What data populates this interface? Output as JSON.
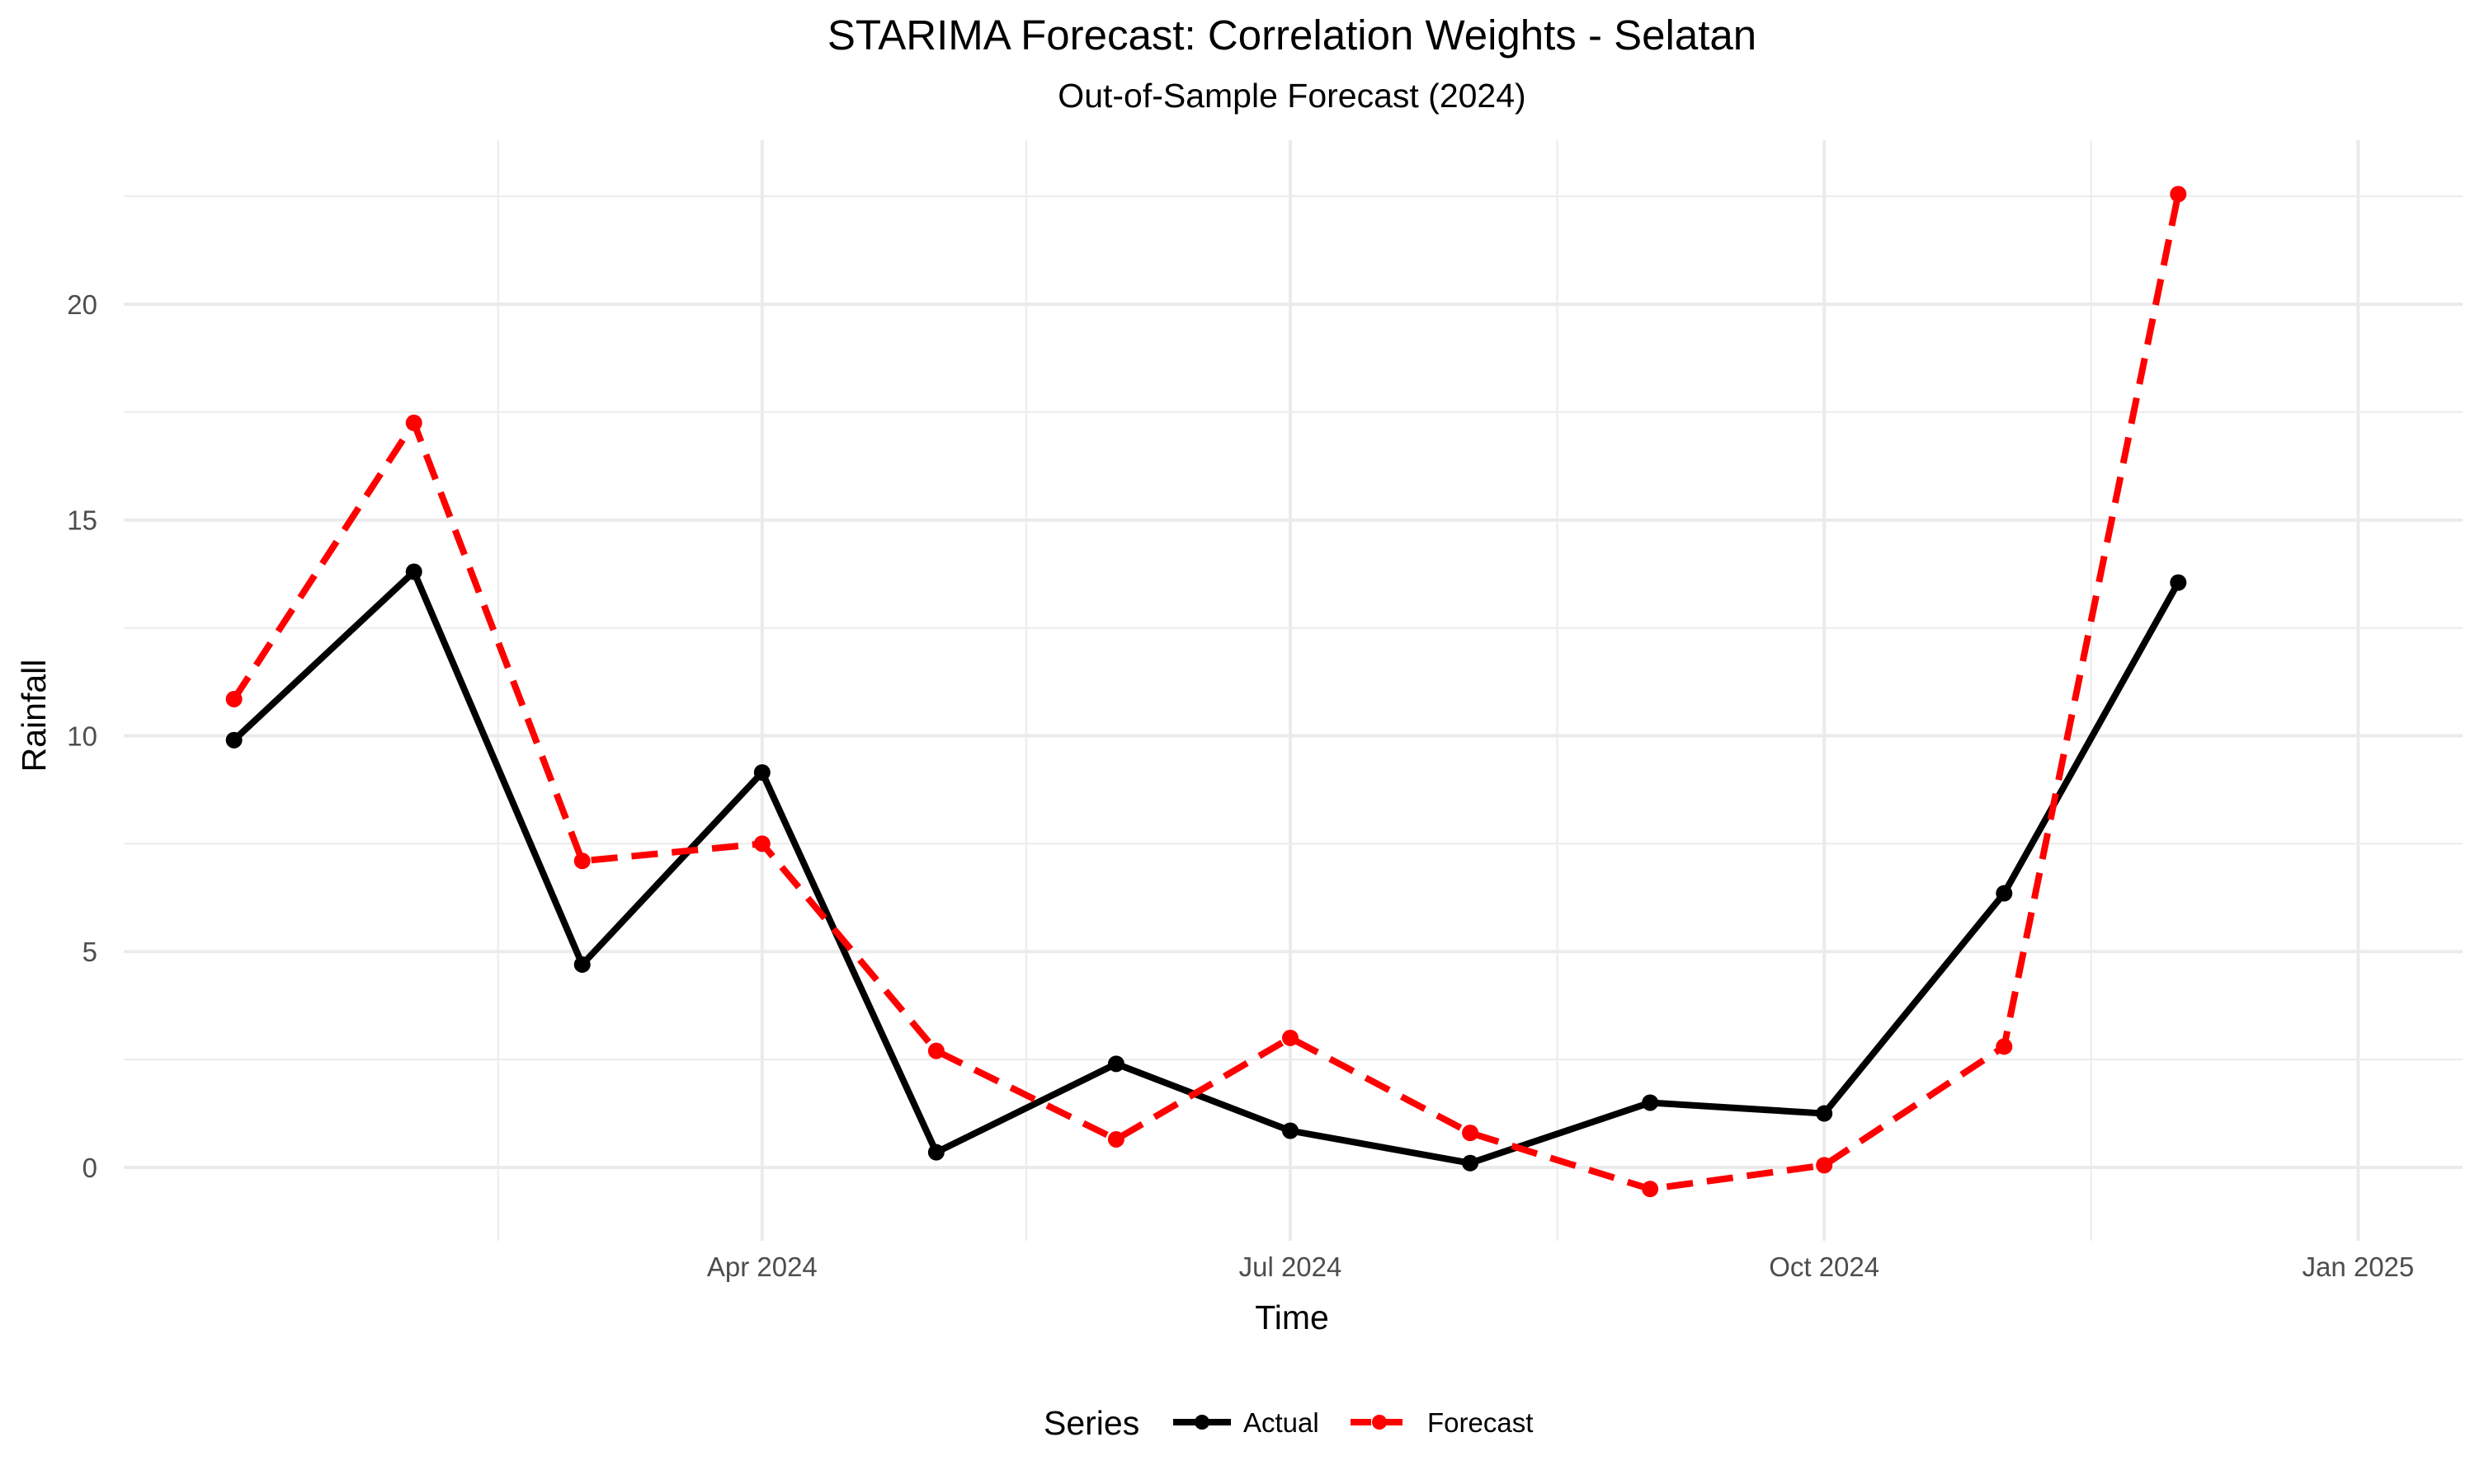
{
  "chart_data": {
    "type": "line",
    "title": "STARIMA Forecast: Correlation Weights - Selatan",
    "subtitle": "Out-of-Sample Forecast (2024)",
    "xlabel": "Time",
    "ylabel": "Rainfall",
    "x": [
      "2024-01-01",
      "2024-02-01",
      "2024-03-01",
      "2024-04-01",
      "2024-05-01",
      "2024-06-01",
      "2024-07-01",
      "2024-08-01",
      "2024-09-01",
      "2024-10-01",
      "2024-11-01",
      "2024-12-01"
    ],
    "x_ticks": [
      "Apr 2024",
      "Jul 2024",
      "Oct 2024",
      "Jan 2025"
    ],
    "y_ticks": [
      0,
      5,
      10,
      15,
      20
    ],
    "xlim": [
      "2023-12-13",
      "2025-01-19"
    ],
    "ylim": [
      -1.7,
      23.8
    ],
    "grid": true,
    "legend_title": "Series",
    "legend_position": "bottom",
    "series": [
      {
        "name": "Actual",
        "color": "#000000",
        "line_style": "solid",
        "values": [
          9.9,
          13.8,
          4.7,
          9.15,
          0.35,
          2.4,
          0.85,
          0.1,
          1.5,
          1.25,
          6.35,
          13.55
        ]
      },
      {
        "name": "Forecast",
        "color": "#ff0000",
        "line_style": "dashed",
        "values": [
          10.85,
          17.25,
          7.1,
          7.5,
          2.7,
          0.65,
          3.0,
          0.8,
          -0.5,
          0.05,
          2.8,
          22.55
        ]
      }
    ]
  }
}
